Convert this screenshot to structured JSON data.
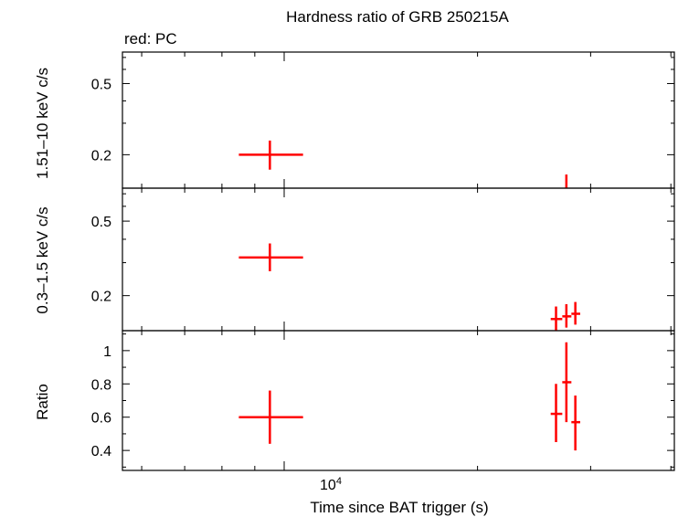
{
  "title": "Hardness ratio of GRB 250215A",
  "legend_text": "red: PC",
  "colors": {
    "series": "#ff0000",
    "axes": "#000000",
    "background": "#ffffff"
  },
  "xlabel": "Time since BAT trigger (s)",
  "x_tick_label": {
    "base": "10",
    "exp": "4"
  },
  "chart_data": [
    {
      "type": "scatter",
      "panel": "top",
      "ylabel": "1.51–10 keV c/s",
      "yscale": "log",
      "ylim": [
        0.13,
        0.75
      ],
      "yticks": [
        0.2,
        0.5
      ],
      "ytick_labels": [
        "0.2",
        "0.5"
      ],
      "xscale": "log",
      "xlim": [
        5600,
        40500
      ],
      "series": [
        {
          "points": [
            {
              "x": 9500,
              "y": 0.2,
              "xerr": [
                8500,
                10700
              ],
              "yerr": [
                0.165,
                0.24
              ]
            },
            {
              "x": 27500,
              "y": 0.13,
              "xerr": [
                27500,
                27500
              ],
              "yerr": [
                0.11,
                0.155
              ]
            }
          ]
        }
      ]
    },
    {
      "type": "scatter",
      "panel": "middle",
      "ylabel": "0.3–1.5 keV c/s",
      "yscale": "log",
      "ylim": [
        0.13,
        0.75
      ],
      "yticks": [
        0.2,
        0.5
      ],
      "ytick_labels": [
        "0.2",
        "0.5"
      ],
      "xscale": "log",
      "xlim": [
        5600,
        40500
      ],
      "series": [
        {
          "points": [
            {
              "x": 9500,
              "y": 0.32,
              "xerr": [
                8500,
                10700
              ],
              "yerr": [
                0.27,
                0.38
              ]
            },
            {
              "x": 26500,
              "y": 0.15,
              "xerr": [
                26000,
                27100
              ],
              "yerr": [
                0.13,
                0.175
              ]
            },
            {
              "x": 27500,
              "y": 0.155,
              "xerr": [
                27100,
                28000
              ],
              "yerr": [
                0.135,
                0.18
              ]
            },
            {
              "x": 28400,
              "y": 0.16,
              "xerr": [
                28000,
                28900
              ],
              "yerr": [
                0.14,
                0.185
              ]
            }
          ]
        }
      ]
    },
    {
      "type": "scatter",
      "panel": "bottom",
      "ylabel": "Ratio",
      "yscale": "linear",
      "ylim": [
        0.28,
        1.12
      ],
      "yticks": [
        0.4,
        0.6,
        0.8,
        1.0
      ],
      "ytick_labels": [
        "0.4",
        "0.6",
        "0.8",
        "1"
      ],
      "xscale": "log",
      "xlim": [
        5600,
        40500
      ],
      "series": [
        {
          "points": [
            {
              "x": 9500,
              "y": 0.6,
              "xerr": [
                8500,
                10700
              ],
              "yerr": [
                0.44,
                0.76
              ]
            },
            {
              "x": 26500,
              "y": 0.62,
              "xerr": [
                26000,
                27100
              ],
              "yerr": [
                0.45,
                0.8
              ]
            },
            {
              "x": 27500,
              "y": 0.81,
              "xerr": [
                27100,
                28000
              ],
              "yerr": [
                0.57,
                1.05
              ]
            },
            {
              "x": 28400,
              "y": 0.57,
              "xerr": [
                28000,
                28900
              ],
              "yerr": [
                0.4,
                0.73
              ]
            }
          ]
        }
      ]
    }
  ]
}
